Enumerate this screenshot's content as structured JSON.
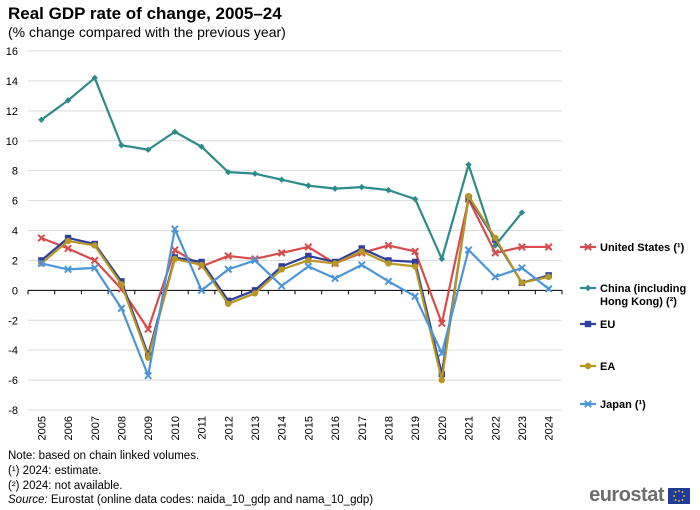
{
  "title": "Real GDP rate of change, 2005–24",
  "subtitle": "(% change compared with the previous year)",
  "notes": {
    "line1": "Note: based on chain linked volumes.",
    "line2": "(¹) 2024: estimate.",
    "line3": "(²) 2024: not available.",
    "source_label": "Source:",
    "source_text": " Eurostat (online data codes: naida_10_gdp and nama_10_gdp)"
  },
  "logo": {
    "text": "eurostat"
  },
  "chart_data": {
    "type": "line",
    "title": "Real GDP rate of change, 2005–24",
    "subtitle": "(% change compared with the previous year)",
    "xlabel": "",
    "ylabel": "",
    "ylim": [
      -8,
      16
    ],
    "yticks": [
      "16",
      "14",
      "12",
      "10",
      "8",
      "6",
      "4",
      "2",
      "0",
      "-2",
      "-4",
      "-6",
      "-8"
    ],
    "categories": [
      "2005",
      "2006",
      "2007",
      "2008",
      "2009",
      "2010",
      "2011",
      "2012",
      "2013",
      "2014",
      "2015",
      "2016",
      "2017",
      "2018",
      "2019",
      "2020",
      "2021",
      "2022",
      "2023",
      "2024"
    ],
    "legend_position": "right",
    "series": [
      {
        "name": "United States (¹)",
        "legend_lines": [
          "United States (¹)"
        ],
        "color": "#d94b4b",
        "marker": "cross",
        "values": [
          3.5,
          2.8,
          2.0,
          0.1,
          -2.6,
          2.7,
          1.6,
          2.3,
          2.1,
          2.5,
          2.9,
          1.8,
          2.5,
          3.0,
          2.6,
          -2.2,
          6.1,
          2.5,
          2.9,
          2.9
        ]
      },
      {
        "name": "China (including Hong Kong) (²)",
        "legend_lines": [
          "China (including",
          "Hong Kong) (²)"
        ],
        "color": "#2e8b8b",
        "marker": "diamond",
        "values": [
          11.4,
          12.7,
          14.2,
          9.7,
          9.4,
          10.6,
          9.6,
          7.9,
          7.8,
          7.4,
          7.0,
          6.8,
          6.9,
          6.7,
          6.1,
          2.1,
          8.4,
          3.0,
          5.2,
          null
        ]
      },
      {
        "name": "EU",
        "legend_lines": [
          "EU"
        ],
        "color": "#2f3f9e",
        "marker": "square",
        "values": [
          2.0,
          3.5,
          3.1,
          0.6,
          -4.3,
          2.2,
          1.9,
          -0.7,
          0.0,
          1.6,
          2.3,
          1.9,
          2.8,
          2.0,
          1.9,
          -5.6,
          6.2,
          3.4,
          0.5,
          1.0
        ]
      },
      {
        "name": "EA",
        "legend_lines": [
          "EA"
        ],
        "color": "#b8961f",
        "marker": "circle",
        "values": [
          1.8,
          3.3,
          3.0,
          0.4,
          -4.5,
          2.1,
          1.7,
          -0.9,
          -0.2,
          1.4,
          2.0,
          1.8,
          2.6,
          1.8,
          1.6,
          -6.0,
          6.3,
          3.5,
          0.5,
          0.9
        ]
      },
      {
        "name": "Japan (¹)",
        "legend_lines": [
          "Japan (¹)"
        ],
        "color": "#4a96d9",
        "marker": "x",
        "values": [
          1.8,
          1.4,
          1.5,
          -1.2,
          -5.7,
          4.1,
          0.0,
          1.4,
          2.0,
          0.3,
          1.6,
          0.8,
          1.7,
          0.6,
          -0.4,
          -4.2,
          2.7,
          0.9,
          1.5,
          0.1
        ]
      }
    ]
  }
}
